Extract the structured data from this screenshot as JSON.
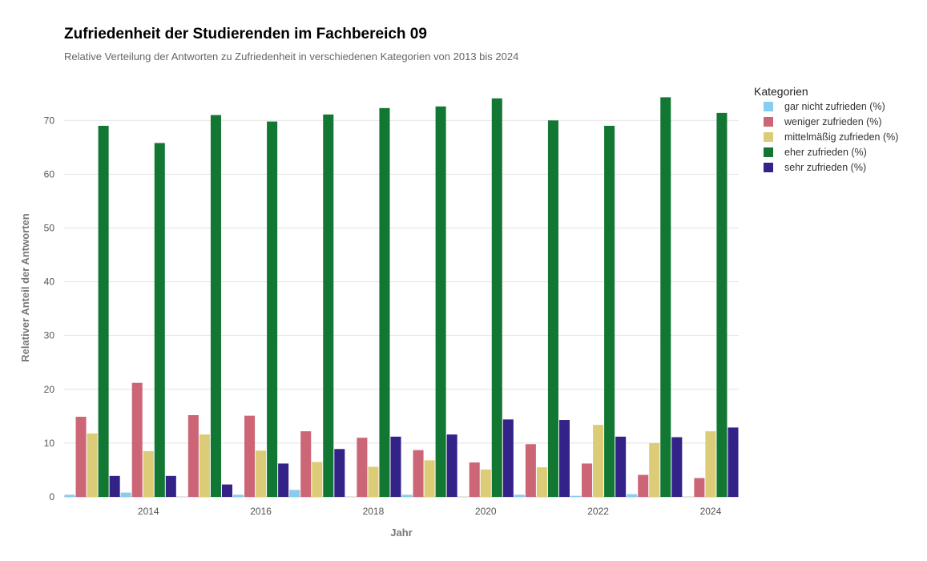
{
  "title": "Zufriedenheit der Studierenden im Fachbereich 09",
  "subtitle": "Relative Verteilung der Antworten zu Zufriedenheit in verschiedenen Kategorien von 2013 bis 2024",
  "chart_data": {
    "type": "bar",
    "xlabel": "Jahr",
    "ylabel": "Relativer Anteil der Antworten",
    "ylim": [
      0,
      76
    ],
    "xlim": [
      2012.5,
      2024.5
    ],
    "xticks": [
      2014,
      2016,
      2018,
      2020,
      2022,
      2024
    ],
    "yticks": [
      0,
      10,
      20,
      30,
      40,
      50,
      60,
      70
    ],
    "grid": true,
    "legend_title": "Kategorien",
    "legend_position": "top-right",
    "categories": [
      2013,
      2014,
      2015,
      2016,
      2017,
      2018,
      2019,
      2020,
      2021,
      2022,
      2023,
      2024
    ],
    "series": [
      {
        "name": "gar nicht zufrieden (%)",
        "color": "#88CCEE",
        "values": [
          0.4,
          0.8,
          0.0,
          0.4,
          1.3,
          0.0,
          0.4,
          0.0,
          0.4,
          0.2,
          0.5,
          0.0
        ]
      },
      {
        "name": "weniger zufrieden (%)",
        "color": "#CC6677",
        "values": [
          14.9,
          21.2,
          15.2,
          15.1,
          12.2,
          11.0,
          8.7,
          6.4,
          9.8,
          6.2,
          4.1,
          3.5
        ]
      },
      {
        "name": "mittelmäßig zufrieden (%)",
        "color": "#DDCC77",
        "values": [
          11.8,
          8.5,
          11.6,
          8.6,
          6.5,
          5.6,
          6.8,
          5.1,
          5.5,
          13.4,
          10.0,
          12.2
        ]
      },
      {
        "name": "eher zufrieden (%)",
        "color": "#117733",
        "values": [
          69.0,
          65.8,
          71.0,
          69.8,
          71.1,
          72.3,
          72.6,
          74.1,
          70.0,
          69.0,
          74.3,
          71.4
        ]
      },
      {
        "name": "sehr zufrieden (%)",
        "color": "#332288",
        "values": [
          3.9,
          3.9,
          2.3,
          6.2,
          8.9,
          11.2,
          11.6,
          14.4,
          14.3,
          11.2,
          11.1,
          12.9
        ]
      }
    ]
  }
}
